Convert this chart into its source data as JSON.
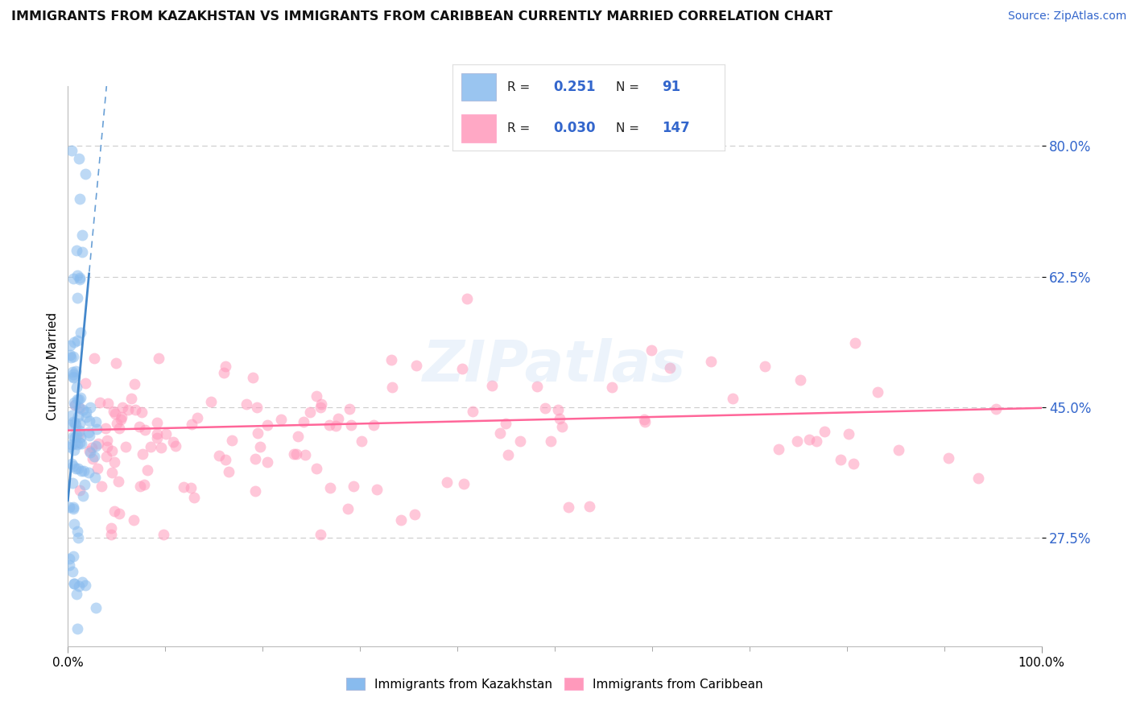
{
  "title": "IMMIGRANTS FROM KAZAKHSTAN VS IMMIGRANTS FROM CARIBBEAN CURRENTLY MARRIED CORRELATION CHART",
  "source_text": "Source: ZipAtlas.com",
  "ylabel": "Currently Married",
  "legend_label1": "Immigrants from Kazakhstan",
  "legend_label2": "Immigrants from Caribbean",
  "R1": "0.251",
  "N1": "91",
  "R2": "0.030",
  "N2": "147",
  "color_kaz": "#88BBEE",
  "color_carib": "#FF99BB",
  "trendline_kaz": "#4488CC",
  "trendline_carib": "#FF6699",
  "yticks": [
    0.275,
    0.45,
    0.625,
    0.8
  ],
  "ytick_labels": [
    "27.5%",
    "45.0%",
    "62.5%",
    "80.0%"
  ],
  "xlim": [
    0.0,
    1.0
  ],
  "ylim": [
    0.13,
    0.88
  ],
  "background_color": "#FFFFFF",
  "grid_color": "#CCCCCC",
  "watermark": "ZIPatlas",
  "watermark_color": "#AACCEE"
}
